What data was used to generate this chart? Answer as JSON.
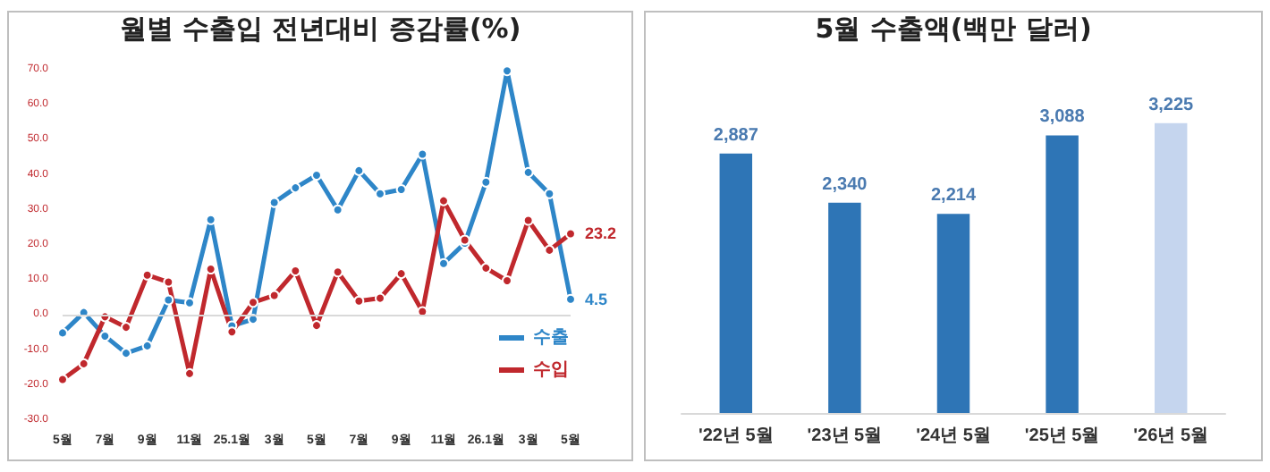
{
  "chart_data": [
    {
      "type": "line",
      "title": "월별 수출입 전년대비 증감률(%)",
      "categories": [
        "5월",
        null,
        "7월",
        null,
        "9월",
        null,
        "11월",
        null,
        "25.1월",
        null,
        "3월",
        null,
        "5월",
        null,
        "7월",
        null,
        "9월",
        null,
        "11월",
        null,
        "26.1월",
        null,
        "3월",
        null,
        "5월"
      ],
      "series": [
        {
          "name": "수출",
          "color": "#2e86c8",
          "values": [
            -5.1,
            0.7,
            -6,
            -10.9,
            -8.8,
            4.3,
            3.5,
            27.2,
            -3.1,
            -1.2,
            32.1,
            36.3,
            39.9,
            30,
            41.2,
            34.6,
            35.8,
            45.9,
            14.7,
            20.5,
            37.9,
            69.7,
            40.7,
            34.6,
            4.5
          ],
          "value_labels": [
            null,
            null,
            null,
            null,
            null,
            null,
            null,
            null,
            null,
            null,
            null,
            null,
            null,
            null,
            null,
            null,
            null,
            null,
            null,
            null,
            null,
            null,
            null,
            null,
            "4.5"
          ]
        },
        {
          "name": "수입",
          "color": "#c0282d",
          "values": [
            -18.4,
            -13.9,
            -0.5,
            -3.5,
            11.4,
            9.4,
            -16.7,
            13.1,
            -4.8,
            3.6,
            5.6,
            12.6,
            -3,
            12.3,
            4,
            4.8,
            11.8,
            1,
            32.6,
            21.4,
            13.4,
            9.8,
            27,
            18.5,
            23.2
          ],
          "value_labels": [
            null,
            null,
            null,
            null,
            null,
            null,
            null,
            null,
            null,
            null,
            null,
            null,
            null,
            null,
            null,
            null,
            null,
            null,
            null,
            null,
            null,
            null,
            null,
            null,
            "23.2"
          ]
        }
      ],
      "ylim": [
        -30,
        70
      ],
      "yticks": [
        {
          "value": -30,
          "label": "-30.0"
        },
        {
          "value": -20,
          "label": "-20.0"
        },
        {
          "value": -10,
          "label": "-10.0"
        },
        {
          "value": 0,
          "label": "0.0"
        },
        {
          "value": 10,
          "label": "10.0"
        },
        {
          "value": 20,
          "label": "20.0"
        },
        {
          "value": 30,
          "label": "30.0"
        },
        {
          "value": 40,
          "label": "40.0"
        },
        {
          "value": 50,
          "label": "50.0"
        },
        {
          "value": 60,
          "label": "60.0"
        },
        {
          "value": 70,
          "label": "70.0"
        }
      ],
      "ref_lines": [
        {
          "axis": "y",
          "value": 0,
          "color": "#d9d9d9"
        }
      ],
      "grid": false,
      "legend": "bottom right",
      "marker": "circle",
      "line_style": "solid"
    },
    {
      "type": "bar",
      "title": "5월 수출액(백만 달러)",
      "categories": [
        "'22년 5월",
        "'23년 5월",
        "'24년 5월",
        "'25년 5월",
        "'26년 5월"
      ],
      "values": [
        2887,
        2340,
        2214,
        3088,
        3225
      ],
      "colors": [
        "#2e75b6",
        "#2e75b6",
        "#2e75b6",
        "#2e75b6",
        "#c5d5ee"
      ],
      "value_labels": [
        "2,887",
        "2,340",
        "2,214",
        "3,088",
        "3,225"
      ],
      "grid": false,
      "legend": false
    }
  ]
}
